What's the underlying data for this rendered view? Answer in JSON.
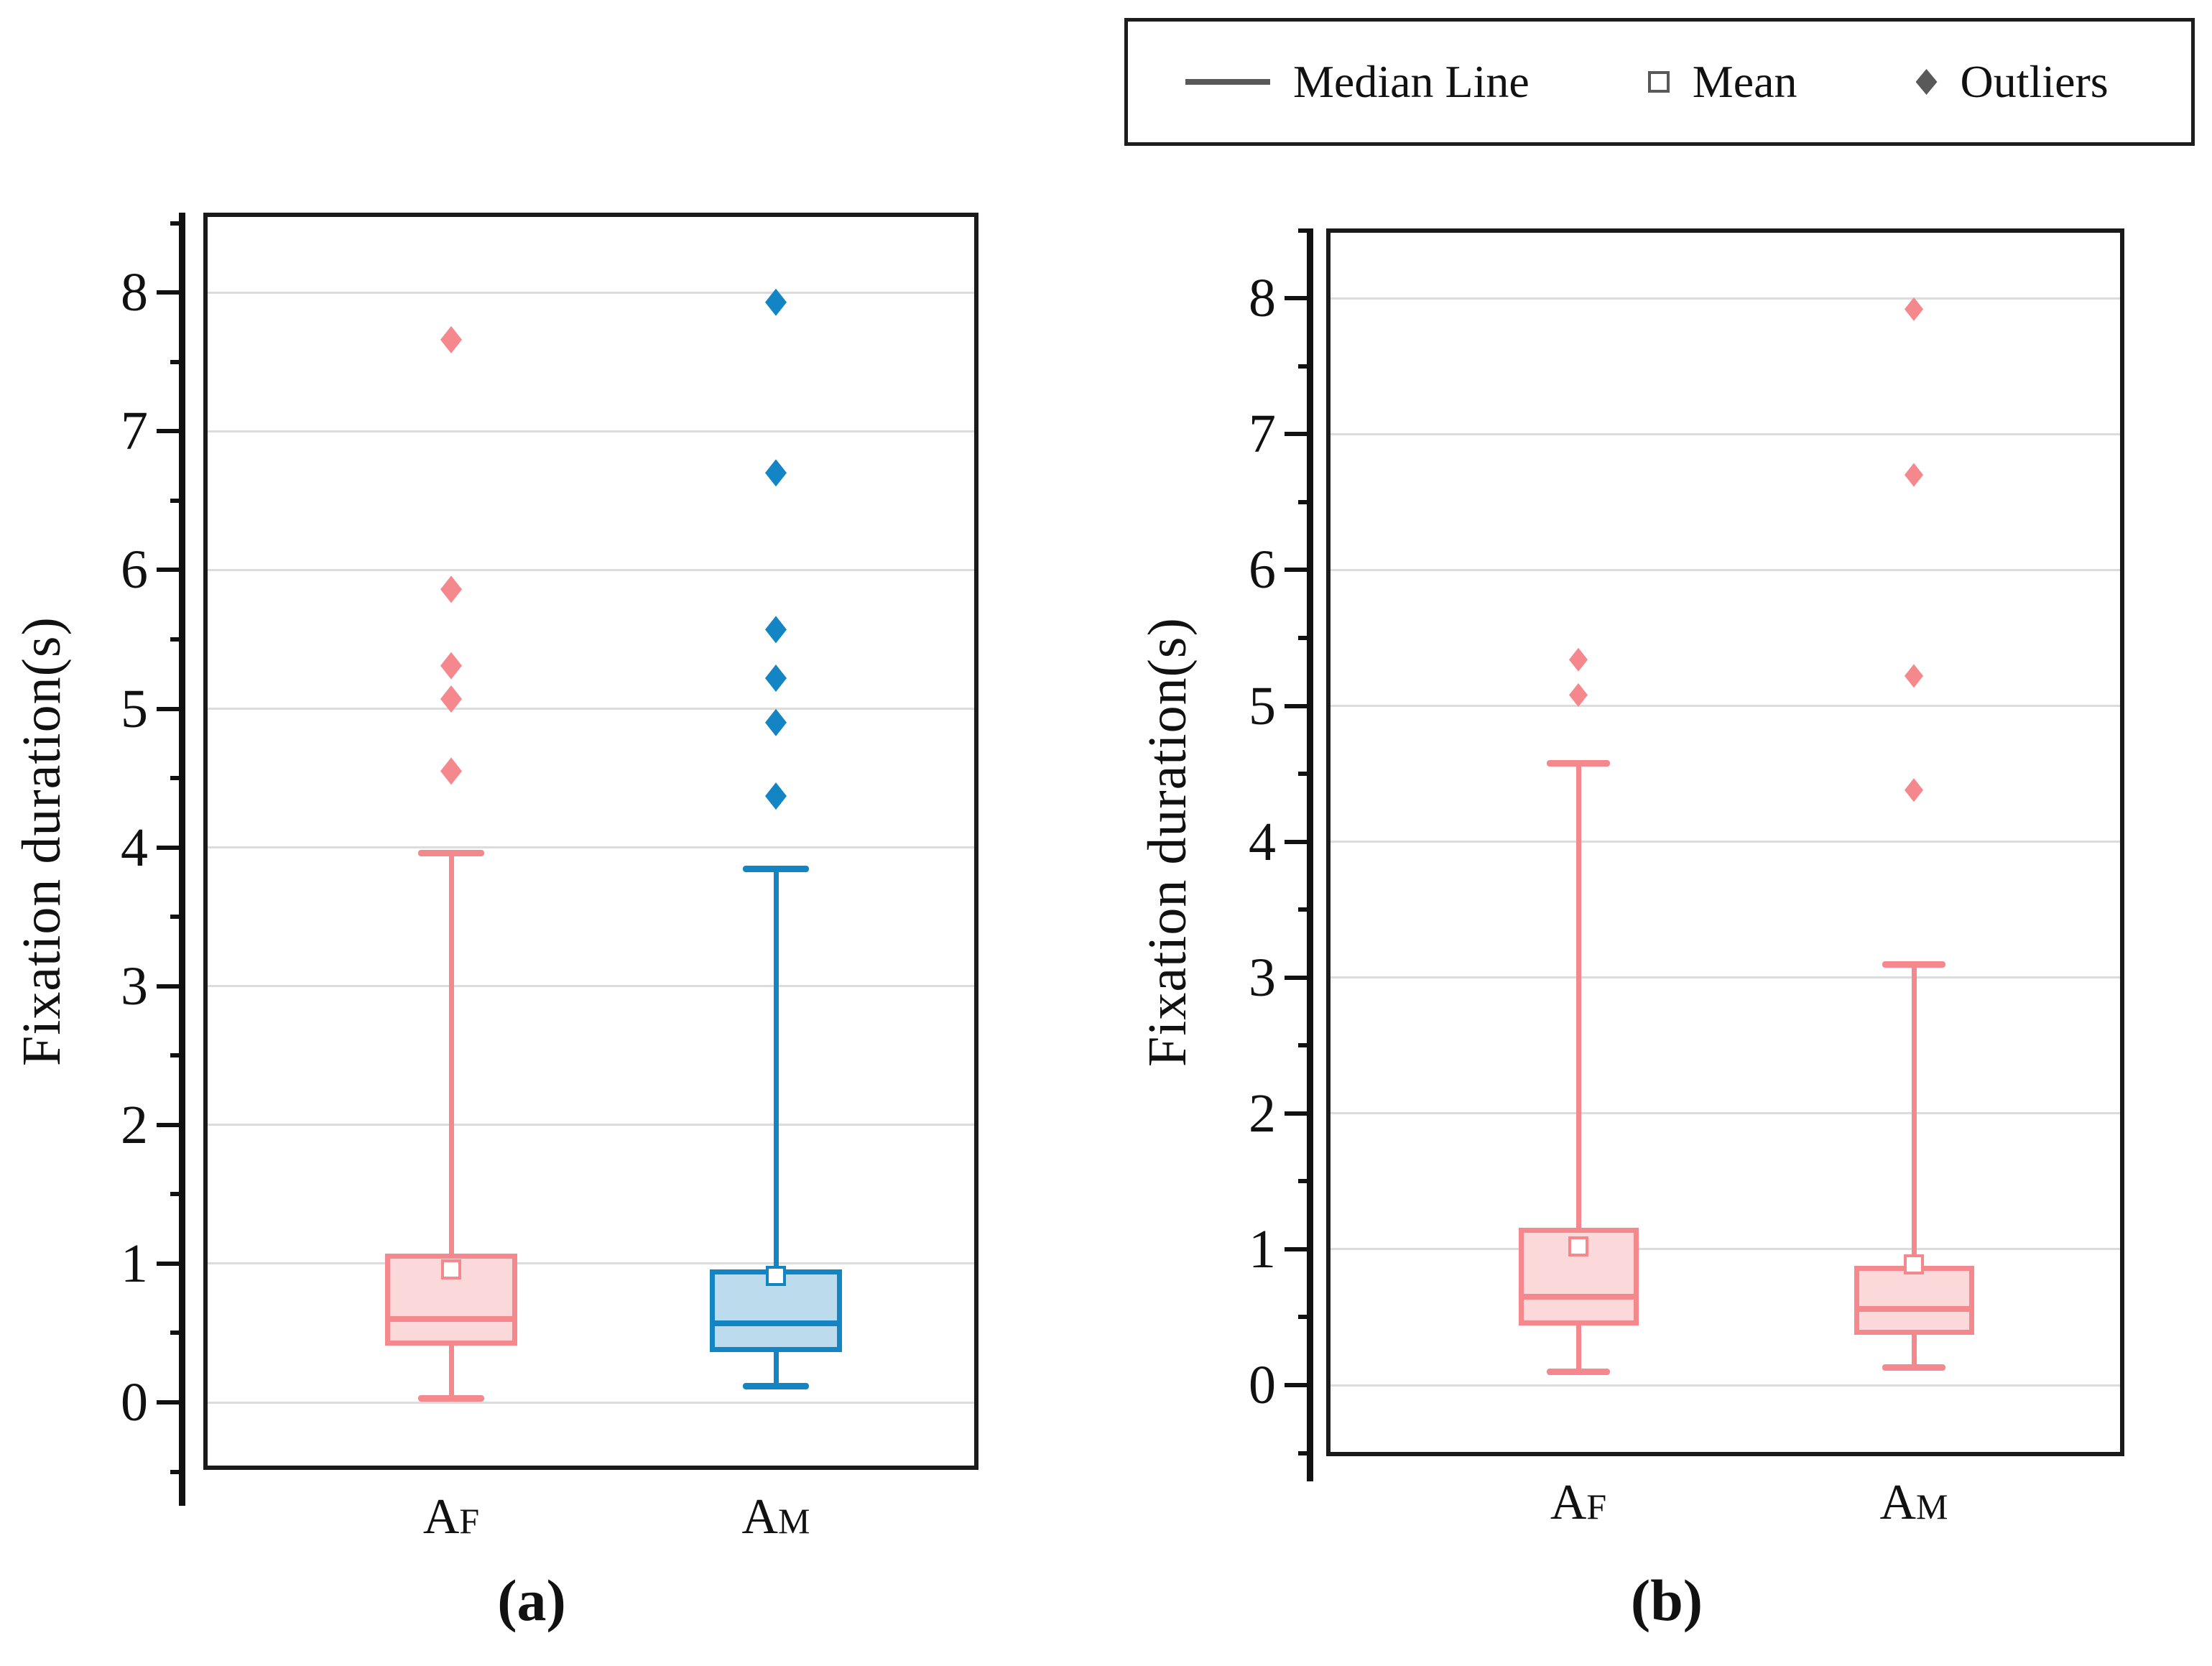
{
  "legend": {
    "items": [
      {
        "symbol": "line-icon",
        "label": "Median Line"
      },
      {
        "symbol": "square-icon",
        "label": "Mean"
      },
      {
        "symbol": "diamond-icon",
        "label": "Outliers"
      }
    ]
  },
  "colors": {
    "pink_stroke": "#F5888D",
    "pink_fill": "#FBD9DB",
    "blue_stroke": "#1385C4",
    "blue_fill": "#BCDCEE",
    "legend_symbol": "#595959",
    "gridline": "#DCDCDC",
    "frame": "#1A1A1A",
    "text": "#111111"
  },
  "chart_data": [
    {
      "type": "box",
      "caption": "(a)",
      "ylabel": "Fixation duration(s)",
      "yticks": [
        0,
        1,
        2,
        3,
        4,
        5,
        6,
        7,
        8
      ],
      "minor_tick_step": 0.5,
      "ylim": [
        -0.5,
        8.58
      ],
      "grid": "horizontal-major",
      "legend_position": "top-right-outside",
      "categories": [
        {
          "main": "A",
          "sub": "F"
        },
        {
          "main": "A",
          "sub": "M"
        }
      ],
      "series": [
        {
          "name": "AF",
          "color": "pink",
          "whisker_low": 0.03,
          "q1": 0.41,
          "median": 0.6,
          "q3": 1.07,
          "whisker_high": 3.96,
          "mean": 0.96,
          "outliers": [
            4.55,
            5.07,
            5.31,
            5.86,
            7.66
          ]
        },
        {
          "name": "AM",
          "color": "blue",
          "whisker_low": 0.12,
          "q1": 0.36,
          "median": 0.57,
          "q3": 0.96,
          "whisker_high": 3.85,
          "mean": 0.91,
          "outliers": [
            4.37,
            4.9,
            5.22,
            5.57,
            6.7,
            7.93
          ]
        }
      ]
    },
    {
      "type": "box",
      "caption": "(b)",
      "ylabel": "Fixation duration(s)",
      "yticks": [
        0,
        1,
        2,
        3,
        4,
        5,
        6,
        7,
        8
      ],
      "minor_tick_step": 0.5,
      "ylim": [
        -0.52,
        8.51
      ],
      "grid": "horizontal-major",
      "legend_position": "top-right-outside",
      "categories": [
        {
          "main": "A",
          "sub": "F"
        },
        {
          "main": "A",
          "sub": "M"
        }
      ],
      "series": [
        {
          "name": "AF",
          "color": "pink",
          "whisker_low": 0.1,
          "q1": 0.44,
          "median": 0.65,
          "q3": 1.16,
          "whisker_high": 4.58,
          "mean": 1.02,
          "outliers": [
            5.08,
            5.34
          ]
        },
        {
          "name": "AM",
          "color": "pink",
          "whisker_low": 0.13,
          "q1": 0.37,
          "median": 0.56,
          "q3": 0.88,
          "whisker_high": 3.1,
          "mean": 0.89,
          "outliers": [
            4.38,
            5.22,
            6.7,
            7.92
          ]
        }
      ]
    }
  ]
}
